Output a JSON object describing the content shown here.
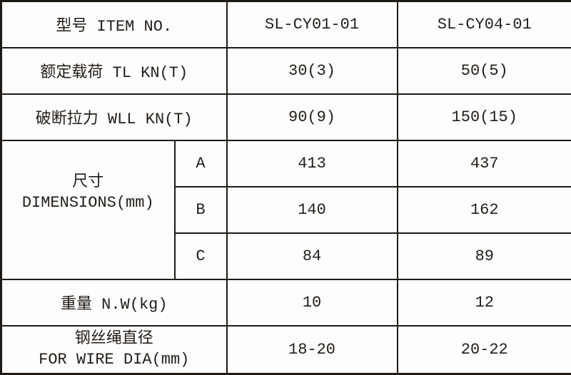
{
  "colors": {
    "border": "#1e1914",
    "text": "#231d17",
    "background": "#fdfdfd"
  },
  "table": {
    "item_row": {
      "label": "型号 ITEM NO.",
      "model_1": "SL-CY01-01",
      "model_2": "SL-CY04-01"
    },
    "rated_load_row": {
      "label": "额定载荷 TL KN(T)",
      "value_1": "30(3)",
      "value_2": "50(5)"
    },
    "breaking_force_row": {
      "label": "破断拉力 WLL KN(T)",
      "value_1": "90(9)",
      "value_2": "150(15)"
    },
    "dimensions_section": {
      "label_cn": "尺寸",
      "label_en": "DIMENSIONS(mm)",
      "row_a": {
        "label": "A",
        "value_1": "413",
        "value_2": "437"
      },
      "row_b": {
        "label": "B",
        "value_1": "140",
        "value_2": "162"
      },
      "row_c": {
        "label": "C",
        "value_1": "84",
        "value_2": "89"
      }
    },
    "weight_row": {
      "label": "重量 N.W(kg)",
      "value_1": "10",
      "value_2": "12"
    },
    "wire_dia_row": {
      "label_cn": "钢丝绳直径",
      "label_en": "FOR WIRE DIA(mm)",
      "value_1": "18-20",
      "value_2": "20-22"
    }
  }
}
